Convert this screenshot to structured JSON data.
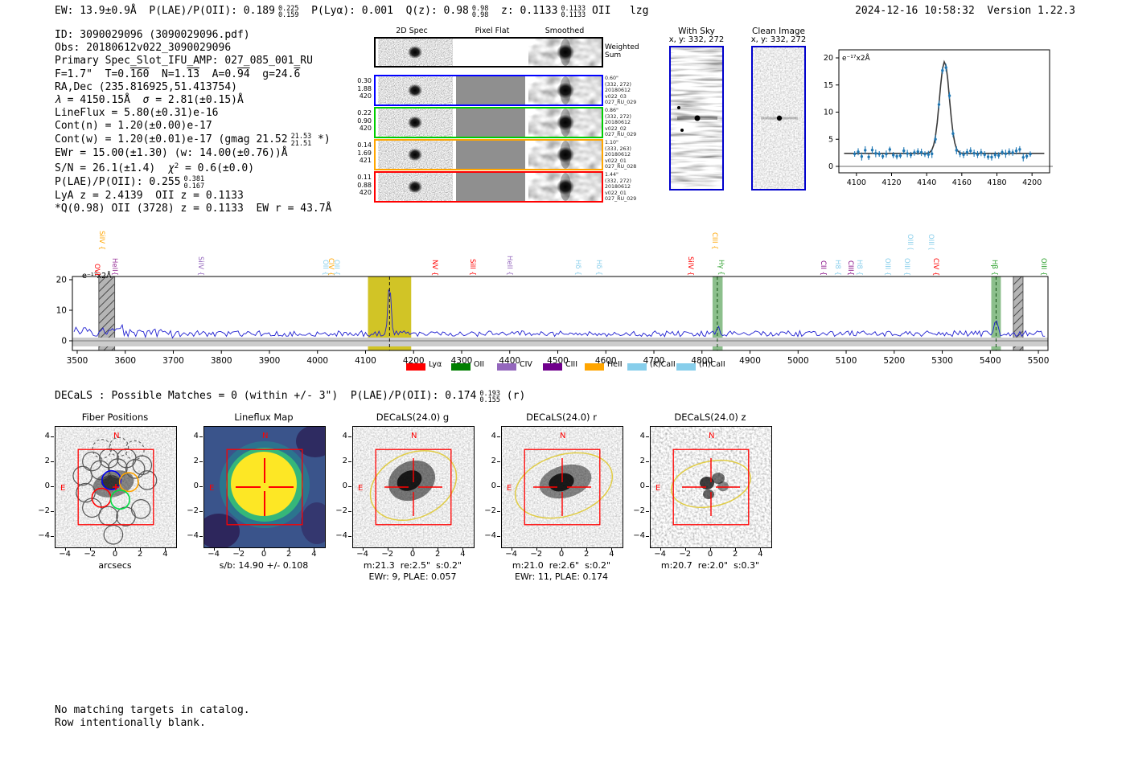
{
  "header": {
    "segments": [
      {
        "t": "EW: 13.9±0.9Å  P(LAE)/P(OII): 0.189"
      },
      {
        "sup": "0.225",
        "sub": "0.159"
      },
      {
        "t": "  P(Lyα): 0.001  Q(z): 0.98"
      },
      {
        "sup": "0.98",
        "sub": "0.98"
      },
      {
        "t": "  z: 0.1133"
      },
      {
        "sup": "0.1133",
        "sub": "0.1133"
      },
      {
        "t": " OII   lzg"
      }
    ],
    "timestamp": "2024-12-16 10:58:32  Version 1.22.3"
  },
  "info_lines": [
    [
      {
        "t": "ID: 3090029096 (3090029096.pdf)"
      }
    ],
    [
      {
        "t": "Obs: 20180612v022_3090029096"
      }
    ],
    [
      {
        "t": "Primary Spec_Slot_IFU_AMP: 027_085_001_RU"
      }
    ],
    [
      {
        "t": "F=1.7\"  T=0."
      },
      {
        "t": "160",
        "ov": true
      },
      {
        "t": "  N=1."
      },
      {
        "t": "13",
        "ov": true
      },
      {
        "t": "  A=0."
      },
      {
        "t": "94",
        "ov": true
      },
      {
        "t": "  g=24."
      },
      {
        "t": "6",
        "ov": true
      }
    ],
    [
      {
        "t": "RA,Dec (235.816925,51.413754)"
      }
    ],
    [
      {
        "t": "λ",
        "i": true
      },
      {
        "t": " = 4150.15Å  "
      },
      {
        "t": "σ",
        "i": true
      },
      {
        "t": " = 2.81(±0.15)Å"
      }
    ],
    [
      {
        "t": "LineFlux = 5.80(±0.31)e-16"
      }
    ],
    [
      {
        "t": "Cont(n) = 1.20(±0.00)e-17"
      }
    ],
    [
      {
        "t": "Cont(w) = 1.20(±0.01)e-17 (gmag 21.52"
      },
      {
        "sup": "21.53",
        "sub": "21.51"
      },
      {
        "t": " *)"
      }
    ],
    [
      {
        "t": "EWr = 15.00(±1.30) (w: 14.00(±0.76))Å"
      }
    ],
    [
      {
        "t": "S/N = 26.1(±1.4)  "
      },
      {
        "t": "χ",
        "i": true
      },
      {
        "t": "2",
        "s1": true
      },
      {
        "t": " = 0.6(±0.0)"
      }
    ],
    [
      {
        "t": "P(LAE)/P(OII): 0.255"
      },
      {
        "sup": "0.381",
        "sub": "0.167"
      }
    ],
    [
      {
        "t": "LyA z = 2.4139  OII z = 0.1133"
      }
    ],
    [
      {
        "t": "*Q(0.98) OII (3728) z = 0.1133  EW r = 43.7Å"
      }
    ]
  ],
  "spec2d": {
    "col_titles": [
      "2D Spec",
      "Pixel Flat",
      "Smoothed"
    ],
    "rows": [
      {
        "border": "#000000",
        "left": [],
        "right": [
          "Weighted",
          "Sum"
        ],
        "weighted": true
      },
      {
        "border": "#0000ff",
        "left": [
          "0.30",
          "1.88",
          "420"
        ],
        "right": [
          "0.60\"",
          "(332, 272)",
          "20180612",
          "v022_03",
          "027_RU_029"
        ],
        "weighted": false
      },
      {
        "border": "#00cc00",
        "left": [
          "0.22",
          "0.90",
          "420"
        ],
        "right": [
          "0.86\"",
          "(332, 272)",
          "20180612",
          "v022_02",
          "027_RU_029"
        ],
        "weighted": false
      },
      {
        "border": "#ffa500",
        "left": [
          "0.14",
          "1.69",
          "421"
        ],
        "right": [
          "1.10\"",
          "(333, 263)",
          "20180612",
          "v022_01",
          "027_RU_028"
        ],
        "weighted": false
      },
      {
        "border": "#ff0000",
        "left": [
          "0.11",
          "0.88",
          "420"
        ],
        "right": [
          "1.44\"",
          "(332, 272)",
          "20180612",
          "v022_01",
          "027_RU_029"
        ],
        "weighted": false
      }
    ]
  },
  "sky_panels": [
    {
      "title": "With Sky",
      "coords": "x, y: 332, 272",
      "style": "stripes"
    },
    {
      "title": "Clean Image",
      "coords": "x, y: 332, 272",
      "style": "clean"
    }
  ],
  "chart_data": [
    {
      "type": "line",
      "name": "emission_line_fit_inset",
      "unit_label": "e⁻¹⁷x2Å",
      "xticks": [
        4100,
        4120,
        4140,
        4160,
        4180,
        4200
      ],
      "yticks": [
        0,
        5,
        10,
        15,
        20
      ],
      "x_range": [
        4090,
        4210
      ],
      "ylim": [
        -1,
        21
      ],
      "series": [
        {
          "name": "spectrum_points",
          "style": "blue points with errorbars",
          "continuum": 2.4,
          "point_step": 2
        },
        {
          "name": "gaussian_fit",
          "peak_x": 4150.15,
          "sigma": 2.81,
          "peak_y": 19.3,
          "continuum": 2.4
        }
      ]
    },
    {
      "type": "line",
      "name": "full_spectrum",
      "unit_label": "e⁻¹⁷x2Å",
      "xticks": [
        3500,
        3600,
        3700,
        3800,
        3900,
        4000,
        4100,
        4200,
        4300,
        4400,
        4500,
        4600,
        4700,
        4800,
        4900,
        5000,
        5100,
        5200,
        5300,
        5400,
        5500
      ],
      "yticks": [
        0,
        10,
        20
      ],
      "x_range": [
        3490,
        5520
      ],
      "ylim": [
        -3,
        21
      ],
      "continuum": 2.4,
      "features": [
        {
          "x": 4150,
          "peak": 19,
          "band": "yellow",
          "band_range": [
            4105,
            4195
          ],
          "line_style": "dashed-black"
        },
        {
          "x": 4832,
          "peak": 4.5,
          "band": "green",
          "band_range": [
            4822,
            4843
          ],
          "line_style": "dashed-green"
        },
        {
          "x": 5412,
          "peak": 7,
          "band": "green",
          "band_range": [
            5402,
            5422
          ],
          "line_style": "dashed-green"
        },
        {
          "band": "hatched-gray",
          "band_range": [
            3545,
            3578
          ]
        },
        {
          "band": "hatched-gray",
          "band_range": [
            5448,
            5468
          ]
        }
      ]
    }
  ],
  "line_labels": [
    {
      "x": 126,
      "c": "#ffa500",
      "t": "SiIV {",
      "tall": true
    },
    {
      "x": 120,
      "c": "#ff0000",
      "t": "OVI",
      "tall": false
    },
    {
      "x": 142,
      "c": "#993399",
      "t": "HeII{",
      "tall": false
    },
    {
      "x": 249,
      "c": "#9467bd",
      "t": "SiIV {",
      "tall": false
    },
    {
      "x": 404,
      "c": "#87ceeb",
      "t": "OII {",
      "tall": false
    },
    {
      "x": 411,
      "c": "#ffa500",
      "t": "CIV {",
      "tall": false
    },
    {
      "x": 418,
      "c": "#87ceeb",
      "t": "OII {",
      "tall": false
    },
    {
      "x": 540,
      "c": "#ff0000",
      "t": "NV {",
      "tall": false
    },
    {
      "x": 587,
      "c": "#ff0000",
      "t": "SiII {",
      "tall": false
    },
    {
      "x": 633,
      "c": "#9467bd",
      "t": "HeII {",
      "tall": false
    },
    {
      "x": 718,
      "c": "#87ceeb",
      "t": "Hδ {",
      "tall": false
    },
    {
      "x": 744,
      "c": "#87ceeb",
      "t": "Hδ {",
      "tall": false
    },
    {
      "x": 858,
      "c": "#ff0000",
      "t": "SiIV {",
      "tall": false
    },
    {
      "x": 888,
      "c": "#ffa500",
      "t": "CIII {",
      "tall": true
    },
    {
      "x": 896,
      "c": "#2ca02c",
      "t": "Hγ {",
      "tall": false
    },
    {
      "x": 1023,
      "c": "#800080",
      "t": "CII {",
      "tall": false
    },
    {
      "x": 1041,
      "c": "#87ceeb",
      "t": "H8 {",
      "tall": false
    },
    {
      "x": 1057,
      "c": "#800080",
      "t": "CIII{",
      "tall": false
    },
    {
      "x": 1068,
      "c": "#87ceeb",
      "t": "H8 {",
      "tall": false
    },
    {
      "x": 1103,
      "c": "#87ceeb",
      "t": "OIII {",
      "tall": false
    },
    {
      "x": 1127,
      "c": "#87ceeb",
      "t": "OIII {",
      "tall": false
    },
    {
      "x": 1131,
      "c": "#87ceeb",
      "t": "OIII (",
      "tall": true
    },
    {
      "x": 1157,
      "c": "#87ceeb",
      "t": "OIII (",
      "tall": true
    },
    {
      "x": 1163,
      "c": "#ff0000",
      "t": "CIV {",
      "tall": false
    },
    {
      "x": 1236,
      "c": "#2ca02c",
      "t": "Hβ {",
      "tall": false
    },
    {
      "x": 1297,
      "c": "#2ca02c",
      "t": "OIII {",
      "tall": false
    }
  ],
  "legend": [
    {
      "label": "Lyα",
      "color": "#ff0000"
    },
    {
      "label": "OII",
      "color": "#007f00"
    },
    {
      "label": "CIV",
      "color": "#9467bd"
    },
    {
      "label": "CIII",
      "color": "#70008c"
    },
    {
      "label": "HeII",
      "color": "#ffa500"
    },
    {
      "label": "(K)CaII",
      "color": "#87ceeb"
    },
    {
      "label": "(H)CaII",
      "color": "#87ceeb"
    }
  ],
  "decals_line": {
    "pre": "DECaLS : Possible Matches = 0 (within +/- 3\")  P(LAE)/P(OII): 0.174",
    "sup": "0.193",
    "sub": "0.155",
    "post": " (r)"
  },
  "cutouts": {
    "ticks": [
      -4,
      -2,
      0,
      2,
      4
    ],
    "compass": {
      "n": "N",
      "e": "E"
    },
    "panels": [
      {
        "title": "Fiber Positions",
        "type": "fiber",
        "xlabel": "arcsecs",
        "caption1": "",
        "caption2": ""
      },
      {
        "title": "Lineflux Map",
        "type": "lineflux",
        "xlabel": "",
        "caption1": "s/b: 14.90 +/- 0.108",
        "caption2": ""
      },
      {
        "title": "DECaLS(24.0) g",
        "type": "image",
        "xlabel": "",
        "caption1": "m:21.3  re:2.5\"  s:0.2\"",
        "caption2": "EWr: 9, PLAE: 0.057"
      },
      {
        "title": "DECaLS(24.0) r",
        "type": "image",
        "xlabel": "",
        "caption1": "m:21.0  re:2.6\"  s:0.2\"",
        "caption2": "EWr: 11, PLAE: 0.174"
      },
      {
        "title": "DECaLS(24.0) z",
        "type": "image",
        "xlabel": "",
        "caption1": "m:20.7  re:2.0\"  s:0.3\"",
        "caption2": ""
      }
    ]
  },
  "footer_lines": [
    "No matching targets in catalog.",
    "Row intentionally blank."
  ]
}
